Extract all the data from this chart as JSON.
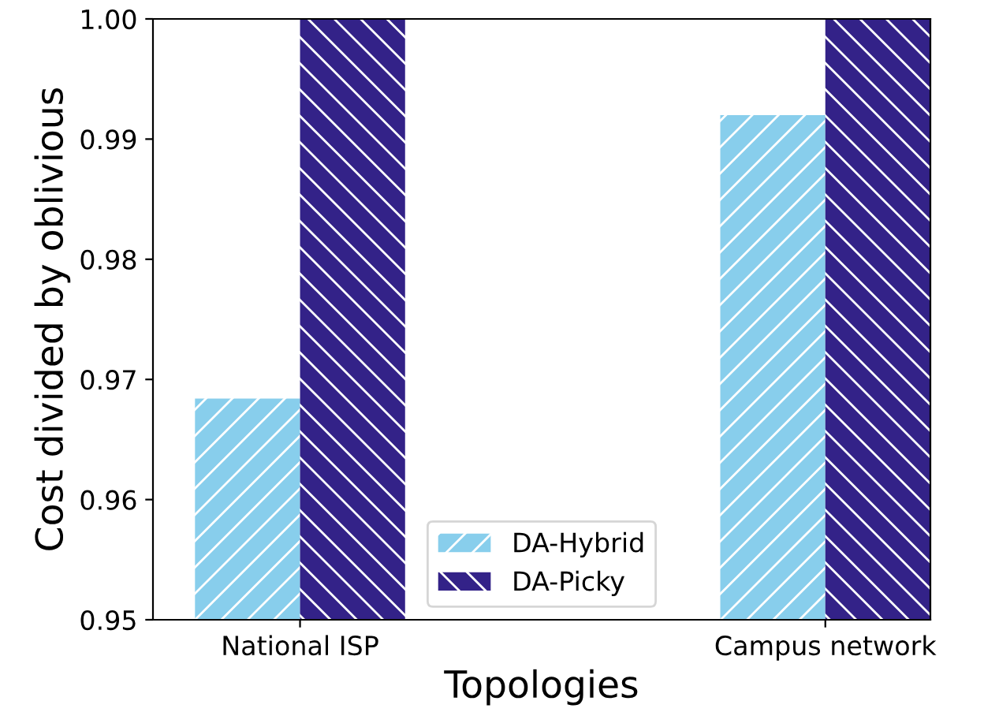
{
  "chart_data": {
    "type": "bar",
    "xlabel": "Topologies",
    "ylabel": "Cost divided by oblivious",
    "categories": [
      "National ISP",
      "Campus network"
    ],
    "series": [
      {
        "name": "DA-Hybrid",
        "color": "#88ceec",
        "values": [
          0.9684,
          0.992
        ]
      },
      {
        "name": "DA-Picky",
        "color": "#332288",
        "values": [
          1.0,
          1.0
        ]
      }
    ],
    "ylim": [
      0.95,
      1.0
    ],
    "yticks": [
      {
        "value": 0.95,
        "label": "0.95"
      },
      {
        "value": 0.96,
        "label": "0.96"
      },
      {
        "value": 0.97,
        "label": "0.97"
      },
      {
        "value": 0.98,
        "label": "0.98"
      },
      {
        "value": 0.99,
        "label": "0.99"
      },
      {
        "value": 1.0,
        "label": "1.00"
      }
    ],
    "grid": false,
    "legend": "bottom"
  }
}
